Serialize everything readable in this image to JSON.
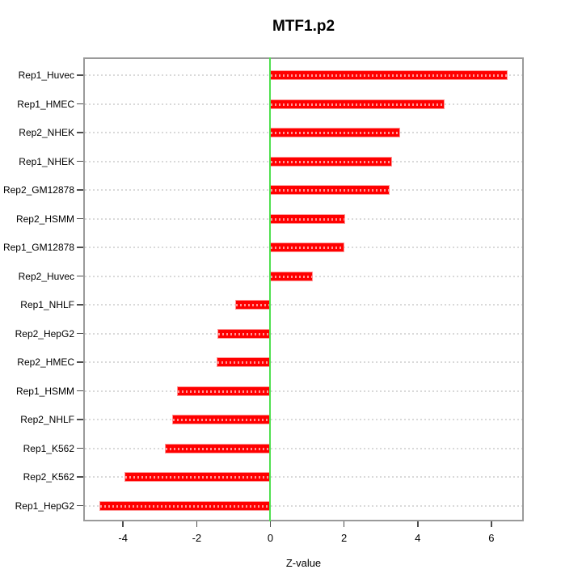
{
  "title": "MTF1.p2",
  "chart_data": {
    "type": "bar",
    "orientation": "horizontal",
    "title": "MTF1.p2",
    "xlabel": "Z-value",
    "ylabel": "",
    "categories": [
      "Rep1_Huvec",
      "Rep1_HMEC",
      "Rep2_NHEK",
      "Rep1_NHEK",
      "Rep2_GM12878",
      "Rep2_HSMM",
      "Rep1_GM12878",
      "Rep2_Huvec",
      "Rep1_NHLF",
      "Rep2_HepG2",
      "Rep2_HMEC",
      "Rep1_HSMM",
      "Rep2_NHLF",
      "Rep1_K562",
      "Rep2_K562",
      "Rep1_HepG2"
    ],
    "values": [
      6.44,
      4.74,
      3.52,
      3.3,
      3.23,
      2.03,
      2.01,
      1.15,
      -0.95,
      -1.44,
      -1.46,
      -2.53,
      -2.66,
      -2.86,
      -3.96,
      -4.64
    ],
    "xticks": [
      -4,
      -2,
      0,
      2,
      4,
      6
    ],
    "xlim": [
      -5.08,
      6.88
    ],
    "grid": "dotted horizontal line per category, full plot width",
    "zero_reference_line": 0,
    "legend_position": "none",
    "colors": {
      "bar_fill": "#ff0000",
      "bar_edge": "#ff9696",
      "zero_line": "#50e050",
      "gridline": "#d9d9d9",
      "plot_border": "#9a9a9a",
      "tick": "#4d4d4d",
      "text": "#000000",
      "background": "#ffffff"
    }
  }
}
